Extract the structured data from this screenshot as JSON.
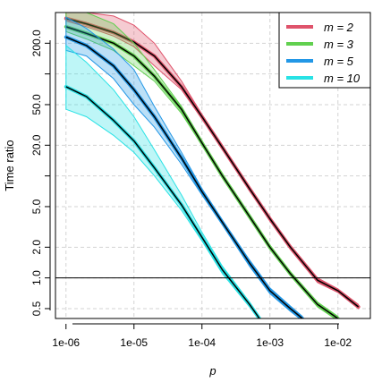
{
  "chart_data": {
    "type": "line",
    "xlabel": "p",
    "ylabel": "Time ratio",
    "x_scale": "log",
    "y_scale": "log",
    "xlim": [
      7e-07,
      0.03
    ],
    "ylim": [
      0.4,
      400
    ],
    "x_ticks": [
      1e-06,
      1e-05,
      0.0001,
      0.001,
      0.01
    ],
    "x_tick_labels": [
      "1e-06",
      "1e-05",
      "1e-04",
      "1e-03",
      "1e-02"
    ],
    "y_ticks": [
      0.5,
      1,
      2,
      5,
      20,
      50,
      200
    ],
    "y_tick_labels": [
      "0.5",
      "1.0",
      "2.0",
      "5.0",
      "20.0",
      "50.0",
      "200.0"
    ],
    "grid": true,
    "reference_line_y": 1,
    "legend_position": "top-right",
    "legend_labels": [
      "m = 2",
      "m = 3",
      "m = 5",
      "m = 10"
    ],
    "series": [
      {
        "name": "m = 2",
        "color": "#df536b",
        "x": [
          1e-06,
          2e-06,
          5e-06,
          1e-05,
          2e-05,
          5e-05,
          0.0001,
          0.0002,
          0.0005,
          0.001,
          0.002,
          0.005,
          0.01,
          0.02
        ],
        "y": [
          350,
          310,
          255,
          205,
          150,
          75,
          38,
          19,
          7.5,
          3.8,
          2.0,
          0.95,
          0.75,
          0.52
        ],
        "lower": [
          330,
          290,
          235,
          185,
          120,
          70,
          36,
          18,
          7.2,
          3.6,
          1.9,
          0.9,
          0.72,
          0.5
        ],
        "upper": [
          400,
          400,
          370,
          300,
          200,
          85,
          40,
          20,
          7.8,
          3.95,
          2.1,
          1.0,
          0.78,
          0.55
        ]
      },
      {
        "name": "m = 3",
        "color": "#61d04f",
        "x": [
          1e-06,
          2e-06,
          5e-06,
          1e-05,
          2e-05,
          5e-05,
          0.0001,
          0.0002,
          0.0005,
          0.001,
          0.002,
          0.005,
          0.01
        ],
        "y": [
          290,
          250,
          200,
          150,
          95,
          45,
          21,
          10,
          4,
          2.0,
          1.1,
          0.55,
          0.4
        ],
        "lower": [
          260,
          220,
          170,
          120,
          85,
          41,
          20,
          9.5,
          3.8,
          1.9,
          1.05,
          0.52,
          0.38
        ],
        "upper": [
          400,
          400,
          310,
          200,
          110,
          48,
          22,
          10.5,
          4.2,
          2.1,
          1.15,
          0.58,
          0.42
        ]
      },
      {
        "name": "m = 5",
        "color": "#2297e6",
        "x": [
          1e-06,
          2e-06,
          5e-06,
          1e-05,
          2e-05,
          5e-05,
          0.0001,
          0.0002,
          0.0005,
          0.001,
          0.002,
          0.003
        ],
        "y": [
          230,
          190,
          120,
          70,
          38,
          15,
          7,
          3.5,
          1.4,
          0.75,
          0.5,
          0.4
        ],
        "lower": [
          170,
          150,
          90,
          50,
          30,
          13,
          6.5,
          3.3,
          1.3,
          0.7,
          0.47,
          0.38
        ],
        "upper": [
          360,
          280,
          175,
          110,
          48,
          17,
          7.5,
          3.7,
          1.5,
          0.8,
          0.53,
          0.42
        ]
      },
      {
        "name": "m = 10",
        "color": "#28e2e5",
        "x": [
          1e-06,
          2e-06,
          5e-06,
          1e-05,
          2e-05,
          5e-05,
          0.0001,
          0.0002,
          0.0005,
          0.0007
        ],
        "y": [
          75,
          60,
          35,
          22,
          12,
          5.2,
          2.5,
          1.2,
          0.55,
          0.4
        ],
        "lower": [
          45,
          38,
          25,
          17,
          10,
          4.6,
          2.3,
          1.1,
          0.52,
          0.38
        ],
        "upper": [
          190,
          130,
          70,
          38,
          18,
          6.5,
          2.8,
          1.3,
          0.58,
          0.42
        ]
      }
    ]
  }
}
